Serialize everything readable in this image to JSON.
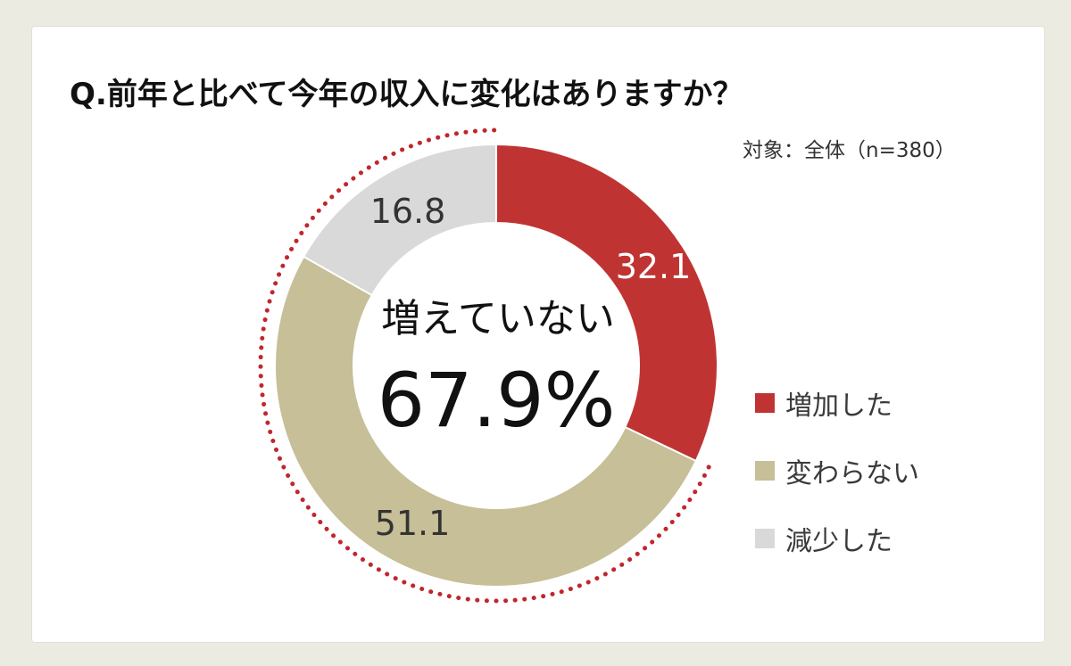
{
  "title": "Q.前年と比べて今年の収入に変化はありますか？",
  "subject": "対象：全体（n=380）",
  "center": {
    "label": "増えていない",
    "value": "67.9%"
  },
  "colors": {
    "increase": "#bf3432",
    "unchanged": "#c6bf97",
    "decrease": "#d9d9d9",
    "dotted_ring": "#c0272d"
  },
  "chart_data": {
    "type": "pie",
    "donut": true,
    "series": [
      {
        "name": "増加した",
        "value": 32.1,
        "label": "32.1",
        "color": "#bf3432",
        "label_color": "#ffffff"
      },
      {
        "name": "変わらない",
        "value": 51.1,
        "label": "51.1",
        "color": "#c6bf97",
        "label_color": "#333333"
      },
      {
        "name": "減少した",
        "value": 16.8,
        "label": "16.8",
        "color": "#d9d9d9",
        "label_color": "#333333"
      }
    ],
    "legend_position": "right",
    "highlight": {
      "segments": [
        "変わらない",
        "減少した"
      ],
      "style": "dotted-outline"
    }
  },
  "legend": [
    {
      "label": "増加した",
      "color": "#bf3432"
    },
    {
      "label": "変わらない",
      "color": "#c6bf97"
    },
    {
      "label": "減少した",
      "color": "#d9d9d9"
    }
  ]
}
